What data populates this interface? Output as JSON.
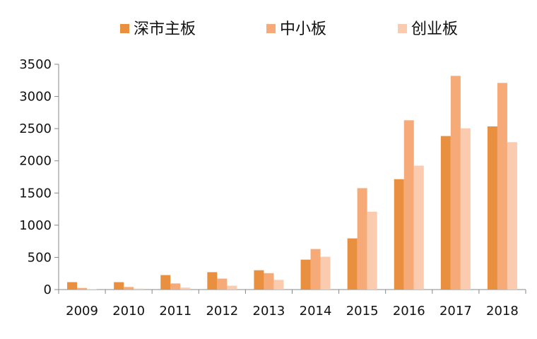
{
  "chart_data": {
    "type": "bar",
    "title": "",
    "xlabel": "",
    "ylabel": "",
    "categories": [
      "2009",
      "2010",
      "2011",
      "2012",
      "2013",
      "2014",
      "2015",
      "2016",
      "2017",
      "2018"
    ],
    "series": [
      {
        "name": "深市主板",
        "color": "#E8903F",
        "values": [
          115,
          115,
          225,
          270,
          300,
          465,
          795,
          1715,
          2385,
          2535
        ]
      },
      {
        "name": "中小板",
        "color": "#F6AA78",
        "values": [
          25,
          40,
          95,
          170,
          255,
          630,
          1575,
          2630,
          3320,
          3210
        ]
      },
      {
        "name": "创业板",
        "color": "#FACBAE",
        "values": [
          5,
          15,
          30,
          60,
          150,
          510,
          1210,
          1925,
          2505,
          2290
        ]
      }
    ],
    "ylim": [
      0,
      3500
    ],
    "yticks": [
      0,
      500,
      1000,
      1500,
      2000,
      2500,
      3000,
      3500
    ],
    "grid": false,
    "legend": "top"
  }
}
